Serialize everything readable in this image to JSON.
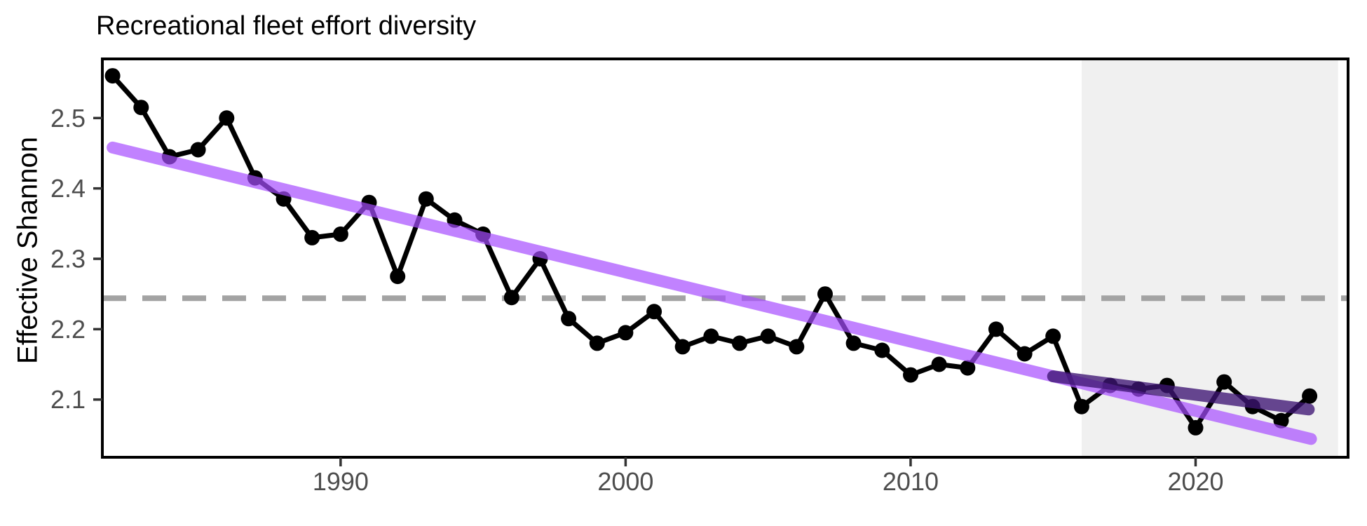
{
  "chart_data": {
    "type": "line",
    "title": "Recreational fleet effort diversity",
    "xlabel": "",
    "ylabel": "Effective Shannon",
    "x_range": [
      1981.64,
      2025.35
    ],
    "y_range": [
      2.018,
      2.584
    ],
    "x_ticks": [
      1990,
      2000,
      2010,
      2020
    ],
    "y_ticks": [
      2.1,
      2.2,
      2.3,
      2.4,
      2.5
    ],
    "grid": "off",
    "legend": "none",
    "reference_line": {
      "value": 2.244,
      "style": "dashed",
      "color": "#A3A3A3"
    },
    "shaded_region": {
      "x_start": 2016,
      "x_end": 2025,
      "color": "#F0F0F0"
    },
    "series": [
      {
        "name": "annual-effective-shannon",
        "style": "line+points",
        "color": "#000000",
        "x": [
          1982,
          1983,
          1984,
          1985,
          1986,
          1987,
          1988,
          1989,
          1990,
          1991,
          1992,
          1993,
          1994,
          1995,
          1996,
          1997,
          1998,
          1999,
          2000,
          2001,
          2002,
          2003,
          2004,
          2005,
          2006,
          2007,
          2008,
          2009,
          2010,
          2011,
          2012,
          2013,
          2014,
          2015,
          2016,
          2017,
          2018,
          2019,
          2020,
          2021,
          2022,
          2023,
          2024
        ],
        "values": [
          2.56,
          2.515,
          2.445,
          2.455,
          2.5,
          2.415,
          2.385,
          2.33,
          2.335,
          2.38,
          2.275,
          2.385,
          2.355,
          2.335,
          2.245,
          2.3,
          2.215,
          2.18,
          2.195,
          2.225,
          2.175,
          2.19,
          2.18,
          2.19,
          2.175,
          2.25,
          2.18,
          2.17,
          2.135,
          2.15,
          2.145,
          2.2,
          2.165,
          2.19,
          2.09,
          2.12,
          2.115,
          2.12,
          2.06,
          2.125,
          2.09,
          2.07,
          2.105
        ],
        "line_width": 7,
        "point_radius": 11
      },
      {
        "name": "long-term-trend",
        "style": "trend",
        "color": "rgba(166,77,255,0.70)",
        "x": [
          1982,
          2024.05
        ],
        "values": [
          2.458,
          2.044
        ],
        "line_width": 17
      },
      {
        "name": "recent-trend",
        "style": "trend",
        "color": "rgba(62,20,115,0.78)",
        "x": [
          2015,
          2023.97
        ],
        "values": [
          2.133,
          2.086
        ],
        "line_width": 17
      }
    ],
    "colors": {
      "axis_text": "#4d4d4d",
      "tick_mark": "#333333",
      "panel_border": "#000000",
      "background": "#ffffff"
    }
  }
}
